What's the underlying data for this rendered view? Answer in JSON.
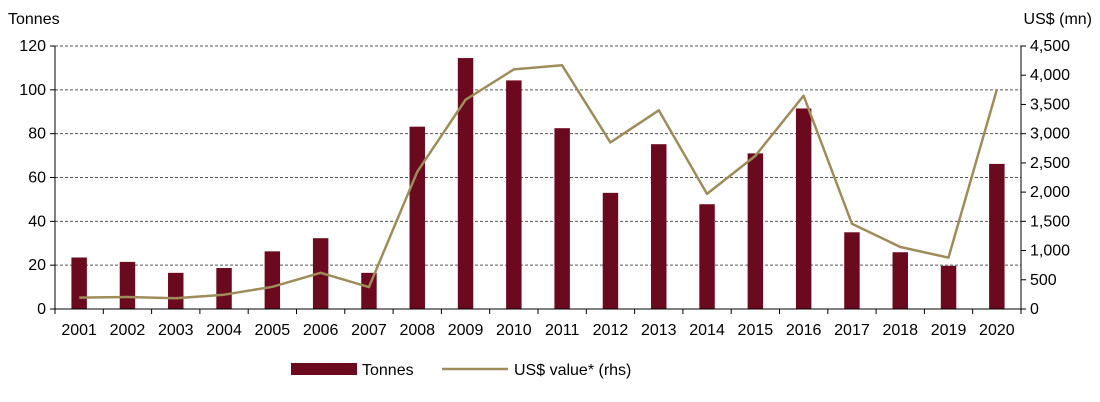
{
  "chart_data": {
    "type": "bar",
    "categories": [
      "2001",
      "2002",
      "2003",
      "2004",
      "2005",
      "2006",
      "2007",
      "2008",
      "2009",
      "2010",
      "2011",
      "2012",
      "2013",
      "2014",
      "2015",
      "2016",
      "2017",
      "2018",
      "2019",
      "2020"
    ],
    "y_left_label": "Tonnes",
    "y_right_label": "US$ (mn)",
    "y_left_lim": [
      0,
      120
    ],
    "y_left_ticks": [
      "0",
      "20",
      "40",
      "60",
      "80",
      "100",
      "120"
    ],
    "y_right_lim": [
      0,
      4500
    ],
    "y_right_ticks": [
      "0",
      "500",
      "1,000",
      "1,500",
      "2,000",
      "2,500",
      "3,000",
      "3,500",
      "4,000",
      "4,500"
    ],
    "grid": "horizontal dashed",
    "legend_position": "bottom",
    "series": [
      {
        "name": "Tonnes",
        "type": "bar",
        "axis": "left",
        "color": "#6b0a1e",
        "values": [
          23.5,
          21.5,
          16.5,
          18.7,
          26.3,
          32.3,
          16.5,
          83.2,
          114.5,
          104.3,
          82.5,
          53,
          75.2,
          47.8,
          71,
          91.5,
          35,
          25.9,
          19.7,
          66.2
        ]
      },
      {
        "name": "US$ value*  (rhs)",
        "type": "line",
        "axis": "right",
        "color": "#9e8c5b",
        "values": [
          195,
          205,
          185,
          245,
          380,
          620,
          375,
          2350,
          3580,
          4100,
          4170,
          2850,
          3400,
          1970,
          2620,
          3650,
          1460,
          1060,
          880,
          3750
        ]
      }
    ]
  }
}
